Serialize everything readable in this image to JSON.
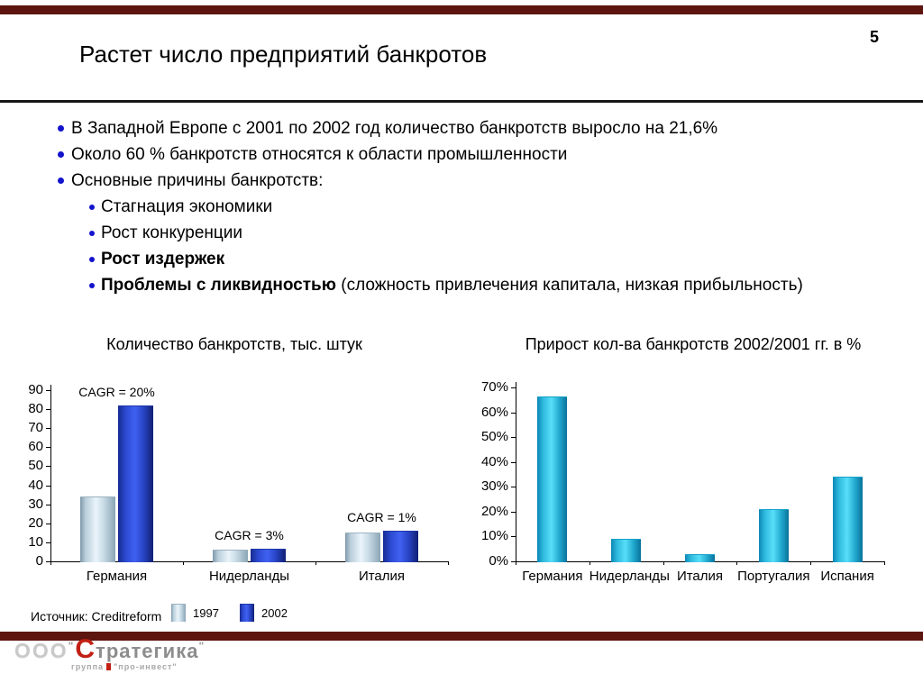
{
  "page": {
    "number": "5",
    "title": "Растет число предприятий банкротов"
  },
  "bullets": [
    {
      "level": 1,
      "bold": "",
      "text": "В Западной Европе с 2001 по 2002 год количество банкротств выросло на 21,6%"
    },
    {
      "level": 1,
      "bold": "",
      "text": "Около 60 % банкротств относятся к области промышленности"
    },
    {
      "level": 1,
      "bold": "",
      "text": "Основные причины банкротств:"
    },
    {
      "level": 2,
      "bold": "",
      "text": "Стагнация экономики"
    },
    {
      "level": 2,
      "bold": "",
      "text": "Рост конкуренции"
    },
    {
      "level": 2,
      "bold": "Рост издержек",
      "text": ""
    },
    {
      "level": 2,
      "bold": "Проблемы с ликвидностью",
      "text": " (сложность привлечения капитала, низкая прибыльность)"
    }
  ],
  "source": "Источник: Creditreform",
  "chart_data": [
    {
      "type": "bar",
      "title": "Количество банкротств, тыс. штук",
      "categories": [
        "Германия",
        "Нидерланды",
        "Италия"
      ],
      "series": [
        {
          "name": "1997",
          "values": [
            34,
            6,
            15
          ]
        },
        {
          "name": "2002",
          "values": [
            82,
            6.5,
            16
          ]
        }
      ],
      "annotations": [
        {
          "category": "Германия",
          "text": "CAGR = 20%"
        },
        {
          "category": "Нидерланды",
          "text": "CAGR = 3%"
        },
        {
          "category": "Италия",
          "text": "CAGR = 1%"
        }
      ],
      "xlabel": "",
      "ylabel": "",
      "ylim": [
        0,
        90
      ],
      "ytick_step": 10,
      "ytick_suffix": "",
      "grid": false,
      "legend_position": "bottom-left"
    },
    {
      "type": "bar",
      "title": "Прирост кол-ва банкротств 2002/2001 гг. в %",
      "categories": [
        "Германия",
        "Нидерланды",
        "Италия",
        "Португалия",
        "Испания"
      ],
      "values": [
        66.5,
        9,
        3,
        21,
        34
      ],
      "xlabel": "",
      "ylabel": "",
      "ylim": [
        0,
        70
      ],
      "ytick_step": 10,
      "ytick_suffix": "%",
      "grid": false,
      "legend_position": "none"
    }
  ],
  "logo": {
    "prefix": "ООО",
    "quote_open": "\"",
    "initial": "С",
    "rest": "тратегика",
    "quote_close": "\"",
    "subtext_left": "группа",
    "subtext_right": "\"про-инвест\""
  },
  "colors": {
    "accent_band": "#5c150f",
    "bullet_blue": "#1313cd",
    "bar_1997_edge": "#7e98a9",
    "bar_1997_mid": "#eaf4fa",
    "bar_2002_edge": "#172b90",
    "bar_2002_mid": "#4061f2",
    "bar_cyan_edge": "#0c86b6",
    "bar_cyan_mid": "#57def9",
    "logo_red": "#c22014",
    "logo_gray": "#8d8d8d"
  }
}
